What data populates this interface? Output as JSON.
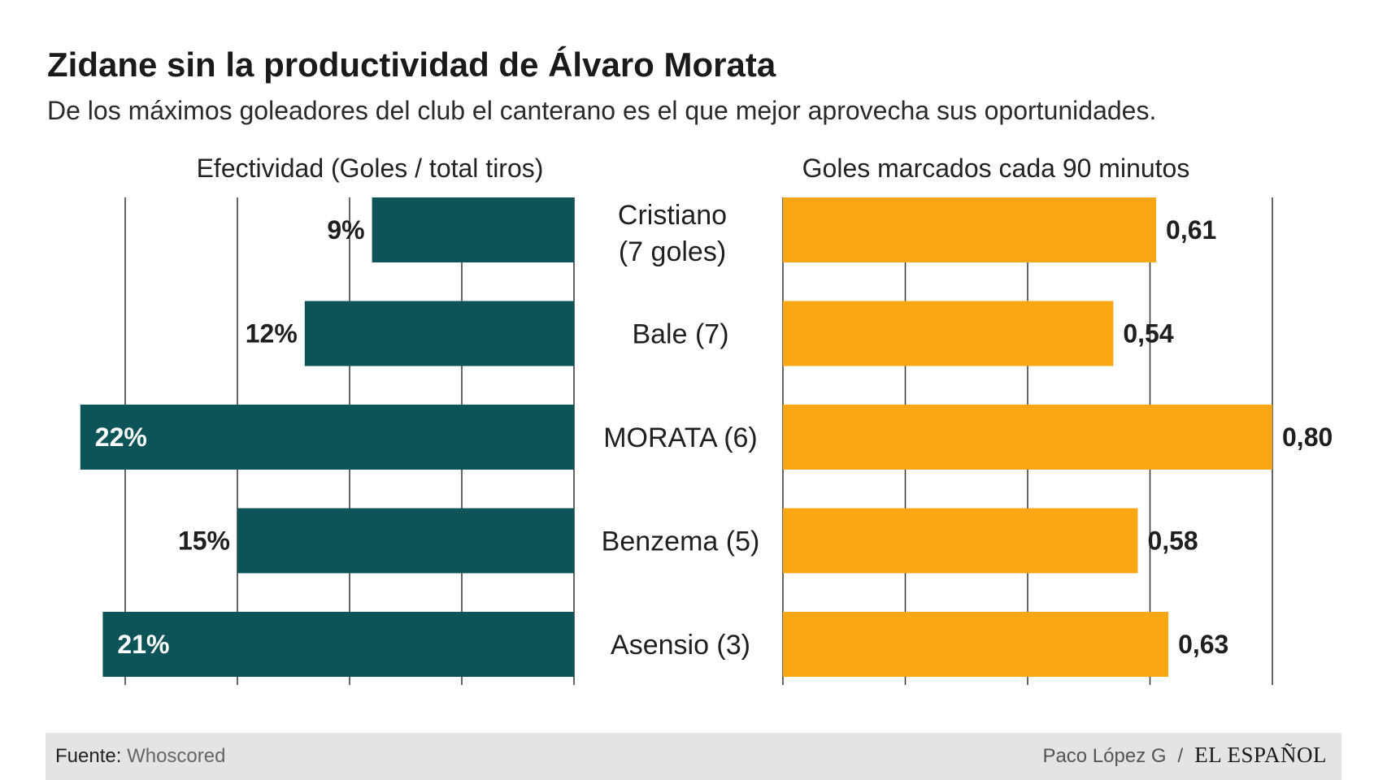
{
  "header": {
    "title": "Zidane sin la productividad de Álvaro Morata",
    "subtitle": "De los máximos goleadores del club el canterano es el que mejor aprovecha sus oportunidades."
  },
  "colors": {
    "effectiveness_bar": "#0d5459",
    "goals_bar": "#fba615",
    "gridline": "#333333",
    "label_text": "#1f1f1f",
    "inside_label_text": "#ffffff"
  },
  "chart_data": [
    {
      "type": "bar",
      "orientation": "horizontal-reversed",
      "title": "Efectividad (Goles / total tiros)",
      "categories": [
        "Cristiano\n(7 goles)",
        "Bale (7)",
        "MORATA (6)",
        "Benzema (5)",
        "Asensio (3)"
      ],
      "values": [
        9,
        12,
        22,
        15,
        21
      ],
      "value_labels": [
        "9%",
        "12%",
        "22%",
        "15%",
        "21%"
      ],
      "unit": "%",
      "xlim": [
        0,
        20
      ],
      "grid_ticks": [
        0,
        5,
        10,
        15,
        20
      ],
      "grid": true
    },
    {
      "type": "bar",
      "orientation": "horizontal",
      "title": "Goles marcados cada 90 minutos",
      "categories": [
        "Cristiano\n(7 goles)",
        "Bale (7)",
        "MORATA (6)",
        "Benzema (5)",
        "Asensio (3)"
      ],
      "values": [
        0.61,
        0.54,
        0.8,
        0.58,
        0.63
      ],
      "value_labels": [
        "0,61",
        "0,54",
        "0,80",
        "0,58",
        "0,63"
      ],
      "xlim": [
        0,
        0.8
      ],
      "grid_ticks": [
        0,
        0.2,
        0.4,
        0.6,
        0.8
      ],
      "grid": true
    }
  ],
  "players": [
    {
      "line1": "Cristiano",
      "line2": "(7 goles)"
    },
    {
      "line1": "Bale (7)",
      "line2": ""
    },
    {
      "line1": "MORATA (6)",
      "line2": ""
    },
    {
      "line1": "Benzema (5)",
      "line2": ""
    },
    {
      "line1": "Asensio (3)",
      "line2": ""
    }
  ],
  "footer": {
    "source_label": "Fuente:",
    "source_value": "Whoscored",
    "author": "Paco López G",
    "separator": "/",
    "brand": "EL ESPAÑOL"
  }
}
